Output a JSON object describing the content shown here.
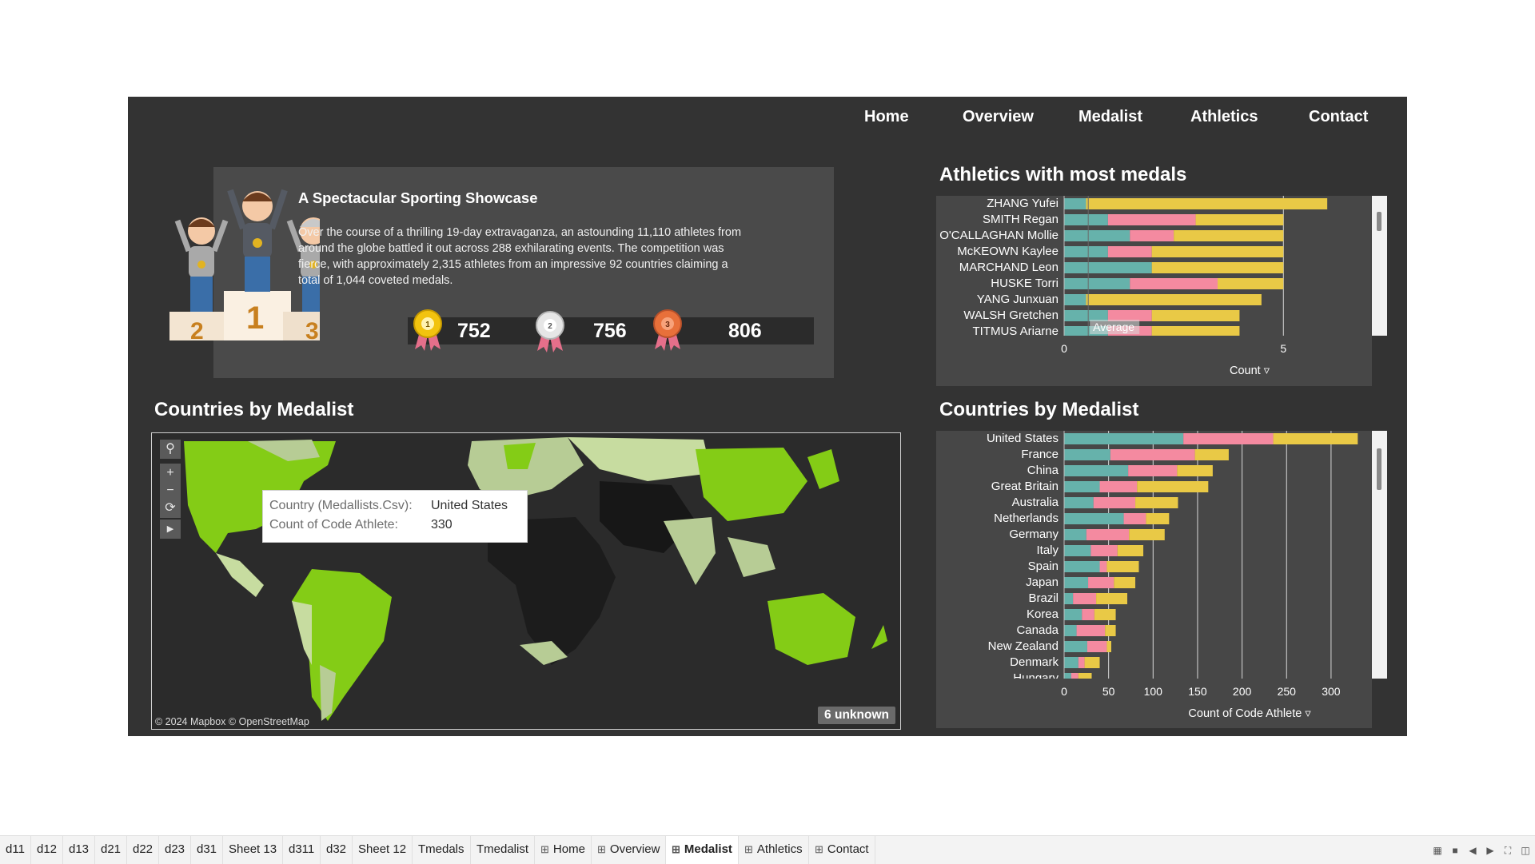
{
  "nav": [
    "Home",
    "Overview",
    "Medalist",
    "Athletics",
    "Contact"
  ],
  "info": {
    "title": "A Spectacular Sporting Showcase",
    "text": "Over the course of a thrilling 19-day extravaganza, an astounding 11,110 athletes from around the globe battled it out across 288 exhilarating events. The competition was fierce, with approximately 2,315 athletes from an impressive 92 countries claiming a total of 1,044 coveted medals.",
    "medals": [
      {
        "rank": "1",
        "count": "752",
        "color": "#f2c30f"
      },
      {
        "rank": "2",
        "count": "756",
        "color": "#d9d9d9"
      },
      {
        "rank": "3",
        "count": "806",
        "color": "#e8703a"
      }
    ],
    "podium_numbers": [
      "2",
      "1",
      "3"
    ]
  },
  "colors": {
    "gold": "#e9c946",
    "silver": "#f48aa0",
    "bronze": "#66b2ab",
    "lime": "#84cc16",
    "dashboard_bg": "#333333"
  },
  "athletes_section": {
    "title": "Athletics with most medals"
  },
  "countries_map_section": {
    "title": "Countries by Medalist"
  },
  "countries_chart_section": {
    "title": "Countries by Medalist"
  },
  "chart_data": [
    {
      "type": "bar",
      "title": "Athletics with most medals",
      "xlabel": "Count",
      "xticks": [
        "0",
        "5"
      ],
      "xlim": [
        0,
        7
      ],
      "reference_line_label": "Average",
      "reference_line_value": 0.55,
      "categories": [
        "ZHANG Yufei",
        "SMITH Regan",
        "O'CALLAGHAN Mollie",
        "McKEOWN Kaylee",
        "MARCHAND Leon",
        "HUSKE Torri",
        "YANG Junxuan",
        "WALSH Gretchen",
        "TITMUS Ariarne"
      ],
      "series": [
        {
          "values": [
            0.5,
            1,
            1.5,
            1,
            2,
            1.5,
            0.5,
            1,
            1
          ]
        },
        {
          "values": [
            0,
            2,
            1,
            1,
            0,
            2,
            0,
            1,
            1
          ]
        },
        {
          "values": [
            5.5,
            2,
            2.5,
            3,
            3,
            1.5,
            4,
            2,
            2
          ]
        }
      ]
    },
    {
      "type": "bar",
      "title": "Countries by Medalist",
      "xlabel": "Count of Code Athlete",
      "xticks": [
        "0",
        "50",
        "100",
        "150",
        "200",
        "250",
        "300"
      ],
      "xlim": [
        0,
        345
      ],
      "categories": [
        "United States",
        "France",
        "China",
        "Great Britain",
        "Australia",
        "Netherlands",
        "Germany",
        "Italy",
        "Spain",
        "Japan",
        "Brazil",
        "Korea",
        "Canada",
        "New Zealand",
        "Denmark",
        "Hungary"
      ],
      "series": [
        {
          "values": [
            134,
            52,
            72,
            40,
            33,
            67,
            25,
            30,
            40,
            27,
            10,
            20,
            14,
            26,
            16,
            8
          ]
        },
        {
          "values": [
            101,
            95,
            55,
            42,
            47,
            25,
            48,
            30,
            8,
            29,
            26,
            14,
            32,
            22,
            7,
            8
          ]
        },
        {
          "values": [
            95,
            38,
            40,
            80,
            48,
            26,
            40,
            29,
            36,
            24,
            35,
            24,
            12,
            5,
            17,
            15
          ]
        }
      ]
    }
  ],
  "map": {
    "tooltip": {
      "country_label": "Country (Medallists.Csv):",
      "country_value": "United States",
      "count_label": "Count of Code Athlete:",
      "count_value": "330"
    },
    "unknown": "6 unknown",
    "credit": "© 2024 Mapbox © OpenStreetMap"
  },
  "tabs": [
    {
      "label": "d11"
    },
    {
      "label": "d12"
    },
    {
      "label": "d13"
    },
    {
      "label": "d21"
    },
    {
      "label": "d22"
    },
    {
      "label": "d23"
    },
    {
      "label": "d31"
    },
    {
      "label": "Sheet 13"
    },
    {
      "label": "d311"
    },
    {
      "label": "d32"
    },
    {
      "label": "Sheet 12"
    },
    {
      "label": "Tmedals"
    },
    {
      "label": "Tmedalist"
    },
    {
      "label": "Home",
      "dashboard": true
    },
    {
      "label": "Overview",
      "dashboard": true
    },
    {
      "label": "Medalist",
      "dashboard": true,
      "active": true
    },
    {
      "label": "Athletics",
      "dashboard": true
    },
    {
      "label": "Contact",
      "dashboard": true
    }
  ]
}
